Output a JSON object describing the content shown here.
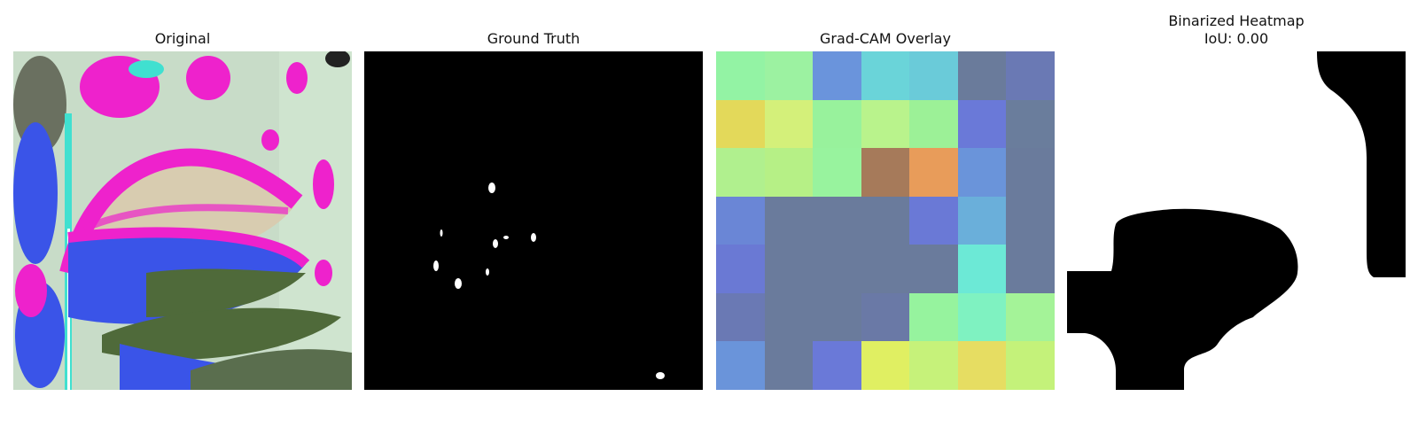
{
  "panels": [
    {
      "title": "Original"
    },
    {
      "title": "Ground Truth"
    },
    {
      "title": "Grad-CAM Overlay"
    },
    {
      "title": "Binarized Heatmap",
      "subtitle": "IoU: 0.00"
    }
  ],
  "gradcam_colors": [
    [
      "#93f3a4",
      "#9cf2a1",
      "#6a94dc",
      "#6ad4d9",
      "#6acbd9",
      "#6a7b9b",
      "#6a79b4"
    ],
    [
      "#e3d95a",
      "#d4f07a",
      "#98f29c",
      "#b9f38c",
      "#9cf197",
      "#6a79d8",
      "#6a7d9c"
    ],
    [
      "#b0f08e",
      "#b6f086",
      "#98f39e",
      "#a67a5a",
      "#e89c5a",
      "#6a94da",
      "#6a7b9c"
    ],
    [
      "#6a86d6",
      "#6a7b9c",
      "#6a7b9c",
      "#6a7b9c",
      "#6a79d6",
      "#6aafda",
      "#6a7b9c"
    ],
    [
      "#6a79d4",
      "#6a7b9c",
      "#6a7b9c",
      "#6a7b9c",
      "#6a7b9c",
      "#6ce9d6",
      "#6a7b9c"
    ],
    [
      "#6a79b4",
      "#6a7b9c",
      "#6a7b9c",
      "#6a79a6",
      "#96f39e",
      "#7ff2c1",
      "#a4f398"
    ],
    [
      "#6a94da",
      "#6a7b9c",
      "#6a79d8",
      "#e0ef62",
      "#c6f27a",
      "#e6dd62",
      "#c4f27a"
    ]
  ]
}
